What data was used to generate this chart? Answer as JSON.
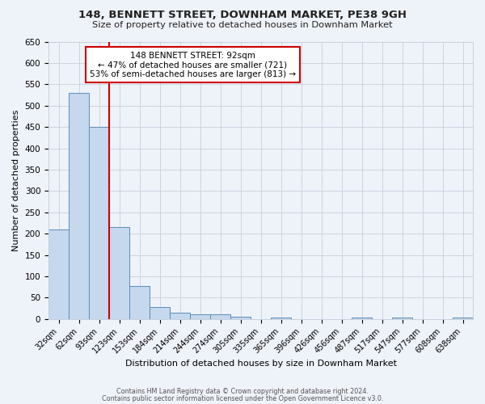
{
  "title": "148, BENNETT STREET, DOWNHAM MARKET, PE38 9GH",
  "subtitle": "Size of property relative to detached houses in Downham Market",
  "xlabel": "Distribution of detached houses by size in Downham Market",
  "ylabel": "Number of detached properties",
  "footer_line1": "Contains HM Land Registry data © Crown copyright and database right 2024.",
  "footer_line2": "Contains public sector information licensed under the Open Government Licence v3.0.",
  "bin_labels": [
    "32sqm",
    "62sqm",
    "93sqm",
    "123sqm",
    "153sqm",
    "184sqm",
    "214sqm",
    "244sqm",
    "274sqm",
    "305sqm",
    "335sqm",
    "365sqm",
    "396sqm",
    "426sqm",
    "456sqm",
    "487sqm",
    "517sqm",
    "547sqm",
    "577sqm",
    "608sqm",
    "638sqm"
  ],
  "bin_counts": [
    210,
    530,
    450,
    215,
    78,
    28,
    15,
    10,
    10,
    5,
    0,
    3,
    0,
    0,
    0,
    3,
    0,
    3,
    0,
    0,
    3
  ],
  "bar_color": "#c5d8ed",
  "bar_edge_color": "#5b8db8",
  "grid_color": "#c8d0dc",
  "background_color": "#eef2f9",
  "red_line_bin_index": 2,
  "annotation_line1": "148 BENNETT STREET: 92sqm",
  "annotation_line2": "← 47% of detached houses are smaller (721)",
  "annotation_line3": "53% of semi-detached houses are larger (813) →",
  "annotation_box_color": "#ffffff",
  "annotation_box_edge": "#cc0000",
  "red_line_color": "#cc0000",
  "ylim_max": 650,
  "yticks": [
    0,
    50,
    100,
    150,
    200,
    250,
    300,
    350,
    400,
    450,
    500,
    550,
    600,
    650
  ]
}
